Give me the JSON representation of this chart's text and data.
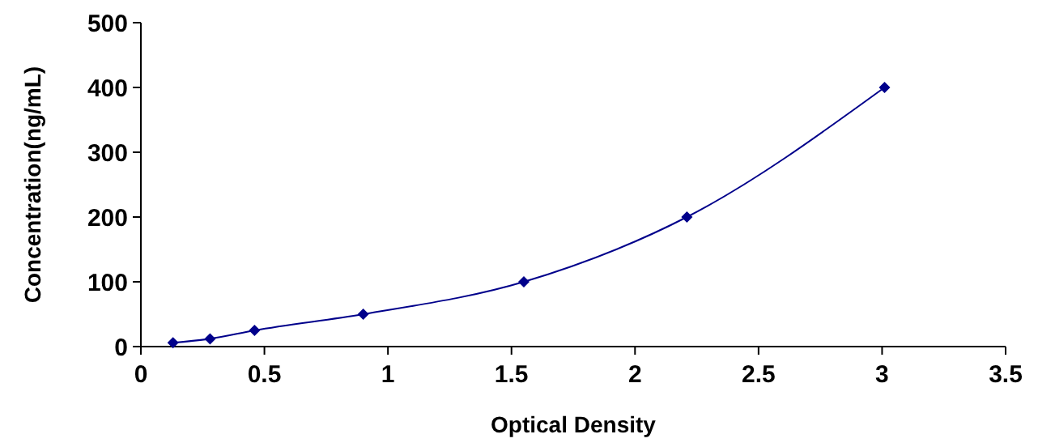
{
  "chart_data": {
    "type": "line",
    "xlabel": "Optical Density",
    "ylabel": "Concentration(ng/mL)",
    "x": [
      0.13,
      0.28,
      0.46,
      0.9,
      1.55,
      2.21,
      3.01
    ],
    "series": [
      {
        "color": "#00008b",
        "values": [
          6,
          12,
          25,
          50,
          100,
          200,
          400
        ]
      }
    ],
    "xlim": [
      0,
      3.5
    ],
    "xticks": [
      0,
      0.5,
      1,
      1.5,
      2,
      2.5,
      3,
      3.5
    ],
    "ylim": [
      0,
      500
    ],
    "yticks": [
      0,
      100,
      200,
      300,
      400,
      500
    ],
    "grid": false,
    "marker": "diamond",
    "line_style": "solid"
  }
}
